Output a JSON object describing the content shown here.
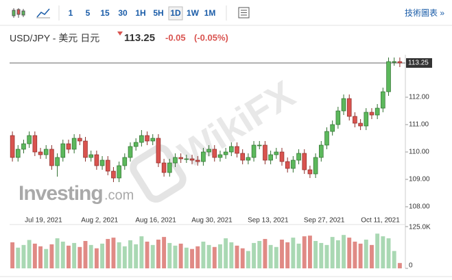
{
  "toolbar": {
    "intervals": [
      "1",
      "5",
      "15",
      "30",
      "1H",
      "5H",
      "1D",
      "1W",
      "1M"
    ],
    "selected": 6,
    "link": "技術圖表 »"
  },
  "watermarks": {
    "brand": "Investing",
    "suffix": ".com",
    "wikifx": "WikiFX"
  },
  "chart_data": {
    "type": "candlestick",
    "title": "USD/JPY - 美元 日元",
    "last_price": 113.25,
    "change": -0.05,
    "change_pct": {
      "value": -0.05,
      "label": "(-0.05%)"
    },
    "up_color": "#5cb85c",
    "down_color": "#d9534f",
    "volume_up_color": "#a9d8b3",
    "volume_down_color": "#e08a85",
    "categories": [
      null,
      null,
      null,
      null,
      null,
      null,
      null,
      "Jul 19, 2021",
      null,
      null,
      null,
      null,
      null,
      null,
      null,
      null,
      null,
      "Aug 2, 2021",
      null,
      null,
      null,
      null,
      null,
      null,
      null,
      null,
      null,
      "Aug 16, 2021",
      null,
      null,
      null,
      null,
      null,
      null,
      null,
      null,
      null,
      "Aug 30, 2021",
      null,
      null,
      null,
      null,
      null,
      null,
      null,
      null,
      null,
      "Sep 13, 2021",
      null,
      null,
      null,
      null,
      null,
      null,
      null,
      null,
      null,
      "Sep 27, 2021",
      null,
      null,
      null,
      null,
      null,
      null,
      null,
      null,
      null,
      "Oct 11, 2021",
      null,
      null
    ],
    "open": [
      110.6,
      109.8,
      110.1,
      110.3,
      110.6,
      110.0,
      109.9,
      110.1,
      109.5,
      109.8,
      110.3,
      110.1,
      110.5,
      110.4,
      109.8,
      109.9,
      109.5,
      109.7,
      109.3,
      109.05,
      109.5,
      109.8,
      110.2,
      110.35,
      110.6,
      110.4,
      110.5,
      109.6,
      109.25,
      109.6,
      109.8,
      109.75,
      109.75,
      109.7,
      109.65,
      110.0,
      110.1,
      109.8,
      109.9,
      110.0,
      110.2,
      109.95,
      109.7,
      109.8,
      110.25,
      110.25,
      109.7,
      109.9,
      110.0,
      109.65,
      109.4,
      109.7,
      109.95,
      109.35,
      109.2,
      109.8,
      110.25,
      110.75,
      111.0,
      111.5,
      111.95,
      111.3,
      111.05,
      110.95,
      111.45,
      111.35,
      111.6,
      112.2,
      113.3,
      113.3
    ],
    "high": [
      110.75,
      110.25,
      110.45,
      110.75,
      110.75,
      110.15,
      110.25,
      110.25,
      109.95,
      110.45,
      110.45,
      110.65,
      110.65,
      110.55,
      110.05,
      110.05,
      109.85,
      109.85,
      109.45,
      109.65,
      109.95,
      110.35,
      110.5,
      110.8,
      110.75,
      110.65,
      110.65,
      109.75,
      109.75,
      109.95,
      109.95,
      109.9,
      109.9,
      109.85,
      110.15,
      110.25,
      110.25,
      110.05,
      110.15,
      110.35,
      110.35,
      110.1,
      109.95,
      110.4,
      110.4,
      110.4,
      110.05,
      110.15,
      110.15,
      109.8,
      109.85,
      110.1,
      110.1,
      109.5,
      109.95,
      110.4,
      110.9,
      111.15,
      111.65,
      112.1,
      112.1,
      111.45,
      111.2,
      111.6,
      111.6,
      111.75,
      112.35,
      113.45,
      113.45,
      113.45
    ],
    "low": [
      109.65,
      109.65,
      109.95,
      110.15,
      109.85,
      109.75,
      109.75,
      109.35,
      109.1,
      109.65,
      109.95,
      109.95,
      110.25,
      109.65,
      109.65,
      109.35,
      109.35,
      109.15,
      108.9,
      108.9,
      109.35,
      109.65,
      110.05,
      110.2,
      110.25,
      110.25,
      109.45,
      109.1,
      109.1,
      109.45,
      109.6,
      109.6,
      109.55,
      109.5,
      109.5,
      109.85,
      109.65,
      109.65,
      109.75,
      109.85,
      109.8,
      109.55,
      109.55,
      109.65,
      110.1,
      109.55,
      109.55,
      109.75,
      109.5,
      109.25,
      109.25,
      109.55,
      109.2,
      109.05,
      109.05,
      109.65,
      110.1,
      110.6,
      110.85,
      111.35,
      111.15,
      110.9,
      110.8,
      110.8,
      111.2,
      111.2,
      111.45,
      112.05,
      113.15,
      113.1
    ],
    "close": [
      109.8,
      110.1,
      110.3,
      110.6,
      110.0,
      109.9,
      110.1,
      109.5,
      109.8,
      110.3,
      110.1,
      110.5,
      110.4,
      109.8,
      109.9,
      109.5,
      109.7,
      109.3,
      109.05,
      109.5,
      109.8,
      110.2,
      110.35,
      110.6,
      110.4,
      110.5,
      109.6,
      109.25,
      109.6,
      109.8,
      109.75,
      109.75,
      109.7,
      109.65,
      110.0,
      110.1,
      109.8,
      109.9,
      110.0,
      110.2,
      109.95,
      109.7,
      109.8,
      110.25,
      110.25,
      109.7,
      109.9,
      110.0,
      109.65,
      109.4,
      109.7,
      109.95,
      109.35,
      109.2,
      109.8,
      110.25,
      110.75,
      111.0,
      111.5,
      111.95,
      111.3,
      111.05,
      110.95,
      111.45,
      111.35,
      111.6,
      112.2,
      113.3,
      113.3,
      113.25
    ],
    "volume": [
      78000,
      62000,
      70000,
      85000,
      74000,
      66000,
      58000,
      72000,
      90000,
      80000,
      68000,
      76000,
      64000,
      82000,
      70000,
      60000,
      74000,
      88000,
      92000,
      78000,
      66000,
      84000,
      72000,
      96000,
      80000,
      70000,
      86000,
      94000,
      76000,
      68000,
      74000,
      62000,
      58000,
      66000,
      80000,
      70000,
      64000,
      72000,
      90000,
      78000,
      68000,
      60000,
      52000,
      76000,
      82000,
      88000,
      70000,
      64000,
      86000,
      78000,
      92000,
      74000,
      96000,
      98000,
      82000,
      76000,
      70000,
      94000,
      84000,
      100000,
      92000,
      80000,
      74000,
      86000,
      70000,
      104000,
      96000,
      90000,
      52000,
      16000
    ],
    "ylim": [
      107.6,
      113.55
    ],
    "yticks": [
      {
        "value": 108,
        "label": "108.00"
      },
      {
        "value": 109,
        "label": "109.00"
      },
      {
        "value": 110,
        "label": "110.00"
      },
      {
        "value": 111,
        "label": "111.00"
      },
      {
        "value": 112,
        "label": "112.00"
      }
    ],
    "vlim": [
      0,
      125000
    ],
    "vticks": [
      {
        "value": 0,
        "label": "0"
      },
      {
        "value": 125000,
        "label": "125.0K"
      }
    ]
  }
}
